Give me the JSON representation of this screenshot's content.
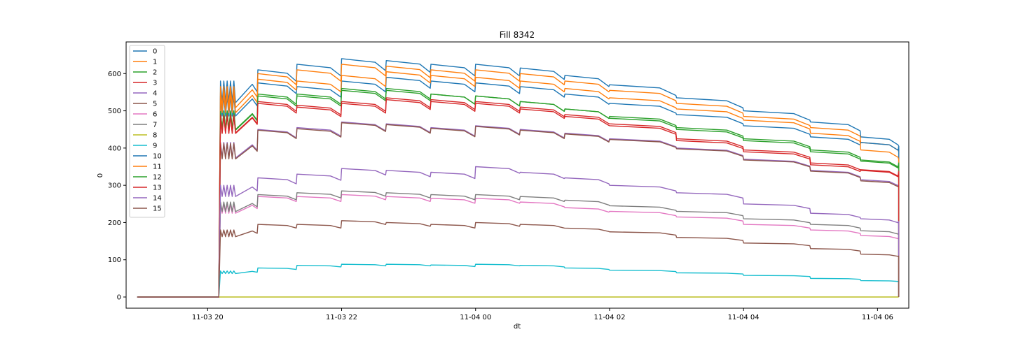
{
  "chart_data": {
    "type": "line",
    "title": "Fill 8342",
    "xlabel": "dt",
    "ylabel": "0",
    "x_ticks": [
      "11-03 20",
      "11-03 22",
      "11-04 00",
      "11-04 02",
      "11-04 04",
      "11-04 06"
    ],
    "x_tick_times": [
      "2022-11-03 20:00",
      "2022-11-03 22:00",
      "2022-11-04 00:00",
      "2022-11-04 02:00",
      "2022-11-04 04:00",
      "2022-11-04 06:00"
    ],
    "y_ticks": [
      0,
      100,
      200,
      300,
      400,
      500,
      600
    ],
    "xlim": [
      "2022-11-03 18:47",
      "2022-11-04 06:28"
    ],
    "ylim": [
      -30,
      685
    ],
    "grid": false,
    "legend_position": "top-left",
    "start_time": "2022-11-03 18:57",
    "rise_time": "2022-11-03 20:10",
    "end_time": "2022-11-04 06:19",
    "segment_times": [
      "2022-11-03 20:25",
      "2022-11-03 20:45",
      "2022-11-03 21:20",
      "2022-11-03 22:00",
      "2022-11-03 22:40",
      "2022-11-03 23:20",
      "2022-11-04 00:00",
      "2022-11-04 00:40",
      "2022-11-04 01:20",
      "2022-11-04 02:00",
      "2022-11-04 03:00",
      "2022-11-04 04:00",
      "2022-11-04 05:00",
      "2022-11-04 05:45",
      "2022-11-04 06:19"
    ],
    "series": [
      {
        "name": "0",
        "color": "#1f77b4",
        "values": [
          580,
          610,
          625,
          640,
          635,
          625,
          625,
          615,
          595,
          570,
          535,
          500,
          470,
          430,
          405
        ]
      },
      {
        "name": "1",
        "color": "#ff7f0e",
        "values": [
          565,
          600,
          610,
          625,
          620,
          610,
          610,
          600,
          580,
          555,
          520,
          485,
          455,
          415,
          390
        ]
      },
      {
        "name": "2",
        "color": "#2ca02c",
        "values": [
          500,
          545,
          540,
          555,
          560,
          545,
          540,
          525,
          505,
          480,
          450,
          420,
          390,
          365,
          355
        ]
      },
      {
        "name": "3",
        "color": "#d62728",
        "values": [
          490,
          525,
          510,
          520,
          530,
          525,
          520,
          505,
          485,
          460,
          420,
          390,
          355,
          340,
          335
        ]
      },
      {
        "name": "4",
        "color": "#9467bd",
        "values": [
          415,
          450,
          455,
          470,
          465,
          455,
          460,
          450,
          440,
          425,
          400,
          370,
          340,
          315,
          300
        ]
      },
      {
        "name": "5",
        "color": "#8c564b",
        "values": [
          412,
          448,
          452,
          468,
          463,
          453,
          458,
          448,
          438,
          423,
          398,
          368,
          338,
          312,
          298
        ]
      },
      {
        "name": "6",
        "color": "#e377c2",
        "values": [
          250,
          270,
          270,
          275,
          270,
          265,
          265,
          255,
          240,
          230,
          215,
          195,
          180,
          165,
          158
        ]
      },
      {
        "name": "7",
        "color": "#7f7f7f",
        "values": [
          255,
          275,
          280,
          285,
          280,
          275,
          275,
          270,
          260,
          245,
          230,
          210,
          195,
          178,
          170
        ]
      },
      {
        "name": "8",
        "color": "#bcbd22",
        "values": [
          0,
          0,
          0,
          0,
          0,
          0,
          0,
          0,
          0,
          0,
          0,
          0,
          0,
          0,
          0
        ]
      },
      {
        "name": "9",
        "color": "#17becf",
        "values": [
          70,
          78,
          85,
          88,
          88,
          86,
          88,
          85,
          78,
          72,
          65,
          58,
          50,
          44,
          41
        ]
      },
      {
        "name": "10",
        "color": "#1f77b4",
        "values": [
          540,
          575,
          565,
          580,
          590,
          580,
          575,
          565,
          545,
          520,
          490,
          460,
          430,
          415,
          405
        ]
      },
      {
        "name": "11",
        "color": "#ff7f0e",
        "values": [
          550,
          585,
          580,
          595,
          605,
          595,
          590,
          580,
          560,
          535,
          505,
          475,
          440,
          395,
          370
        ]
      },
      {
        "name": "12",
        "color": "#2ca02c",
        "values": [
          498,
          540,
          545,
          560,
          555,
          545,
          540,
          525,
          505,
          485,
          455,
          425,
          395,
          368,
          360
        ]
      },
      {
        "name": "13",
        "color": "#d62728",
        "values": [
          488,
          520,
          515,
          525,
          535,
          530,
          525,
          510,
          490,
          465,
          425,
          395,
          360,
          342,
          338
        ]
      },
      {
        "name": "14",
        "color": "#9467bd",
        "values": [
          300,
          320,
          330,
          345,
          340,
          335,
          350,
          335,
          320,
          300,
          280,
          250,
          225,
          210,
          203
        ]
      },
      {
        "name": "15",
        "color": "#8c564b",
        "values": [
          180,
          195,
          195,
          205,
          200,
          195,
          200,
          195,
          185,
          175,
          160,
          145,
          130,
          115,
          110
        ]
      }
    ]
  }
}
